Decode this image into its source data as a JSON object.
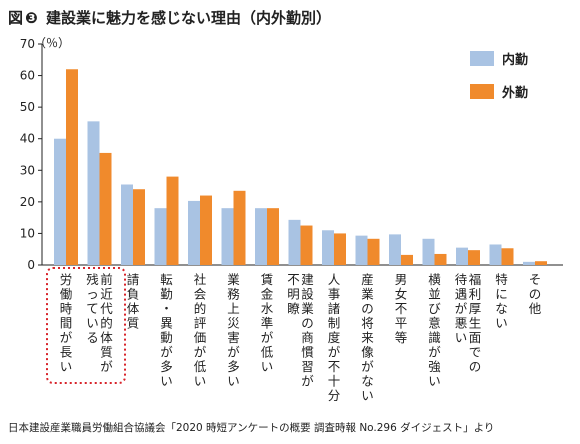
{
  "figure": {
    "number": "❸",
    "number_prefix": "図",
    "title": "建設業に魅力を感じない理由（内外勤別）",
    "source": "日本建設産業職員労働組合協議会「2020 時短アンケートの概要 調査時報 No.296 ダイジェスト」より"
  },
  "chart_data": {
    "type": "bar",
    "title": "建設業に魅力を感じない理由（内外勤別）",
    "ylabel": "",
    "y_unit": "（％）",
    "ylim": [
      0,
      70
    ],
    "yticks": [
      0,
      10,
      20,
      30,
      40,
      50,
      60,
      70
    ],
    "grid": false,
    "legend_position": "top-right",
    "categories": [
      [
        "労働",
        "時間",
        "が",
        "長い"
      ],
      [
        "前近",
        "代的",
        "体質",
        "が",
        "残っ",
        "てい",
        "る"
      ],
      [
        "請負",
        "体質"
      ],
      [
        "転勤",
        "・",
        "異動",
        "が",
        "多い"
      ],
      [
        "社会",
        "的",
        "評価",
        "が",
        "低い"
      ],
      [
        "業務",
        "上",
        "災害",
        "が",
        "多い"
      ],
      [
        "賃金",
        "水準",
        "が",
        "低い"
      ],
      [
        "建設",
        "業の",
        "商慣",
        "習が",
        "不明",
        "瞭"
      ],
      [
        "人事",
        "諸制",
        "度が",
        "不十",
        "分"
      ],
      [
        "産業",
        "の",
        "将来",
        "像",
        "が",
        "ない"
      ],
      [
        "男女",
        "不平",
        "等"
      ],
      [
        "横並",
        "び",
        "意識",
        "が",
        "強い"
      ],
      [
        "福利",
        "厚生",
        "面で",
        "の",
        "待遇",
        "が",
        "悪い"
      ],
      [
        "特に",
        "ない"
      ],
      [
        "その",
        "他"
      ]
    ],
    "category_columns": [
      [
        [
          "労働時間が長い"
        ]
      ],
      [
        [
          "前近代的体質が"
        ],
        [
          "残っている"
        ]
      ],
      [
        [
          "請負体質"
        ]
      ],
      [
        [
          "転勤・異動が多い"
        ]
      ],
      [
        [
          "社会的評価が低い"
        ]
      ],
      [
        [
          "業務上災害が多い"
        ]
      ],
      [
        [
          "賃金水準が低い"
        ]
      ],
      [
        [
          "建設業の商慣習が"
        ],
        [
          "不明瞭"
        ]
      ],
      [
        [
          "人事諸制度が不十分"
        ]
      ],
      [
        [
          "産業の将来像がない"
        ]
      ],
      [
        [
          "男女不平等"
        ]
      ],
      [
        [
          "横並び意識が強い"
        ]
      ],
      [
        [
          "福利厚生面での"
        ],
        [
          "待遇が悪い"
        ]
      ],
      [
        [
          "特にない"
        ]
      ],
      [
        [
          "その他"
        ]
      ]
    ],
    "series": [
      {
        "name": "内勤",
        "color": "#a9c3e3",
        "values": [
          40,
          45.5,
          25.5,
          18,
          20.3,
          18,
          18,
          14.3,
          11,
          9.3,
          9.7,
          8.3,
          5.5,
          6.5,
          1
        ]
      },
      {
        "name": "外勤",
        "color": "#f08a2c",
        "values": [
          62,
          35.5,
          24,
          28,
          22,
          23.5,
          18,
          12.5,
          10,
          8.3,
          3.2,
          3.5,
          4.7,
          5.3,
          1.2
        ]
      }
    ],
    "highlight": {
      "category_index": 0,
      "style": "dotted-box",
      "color": "#d8232a"
    }
  }
}
